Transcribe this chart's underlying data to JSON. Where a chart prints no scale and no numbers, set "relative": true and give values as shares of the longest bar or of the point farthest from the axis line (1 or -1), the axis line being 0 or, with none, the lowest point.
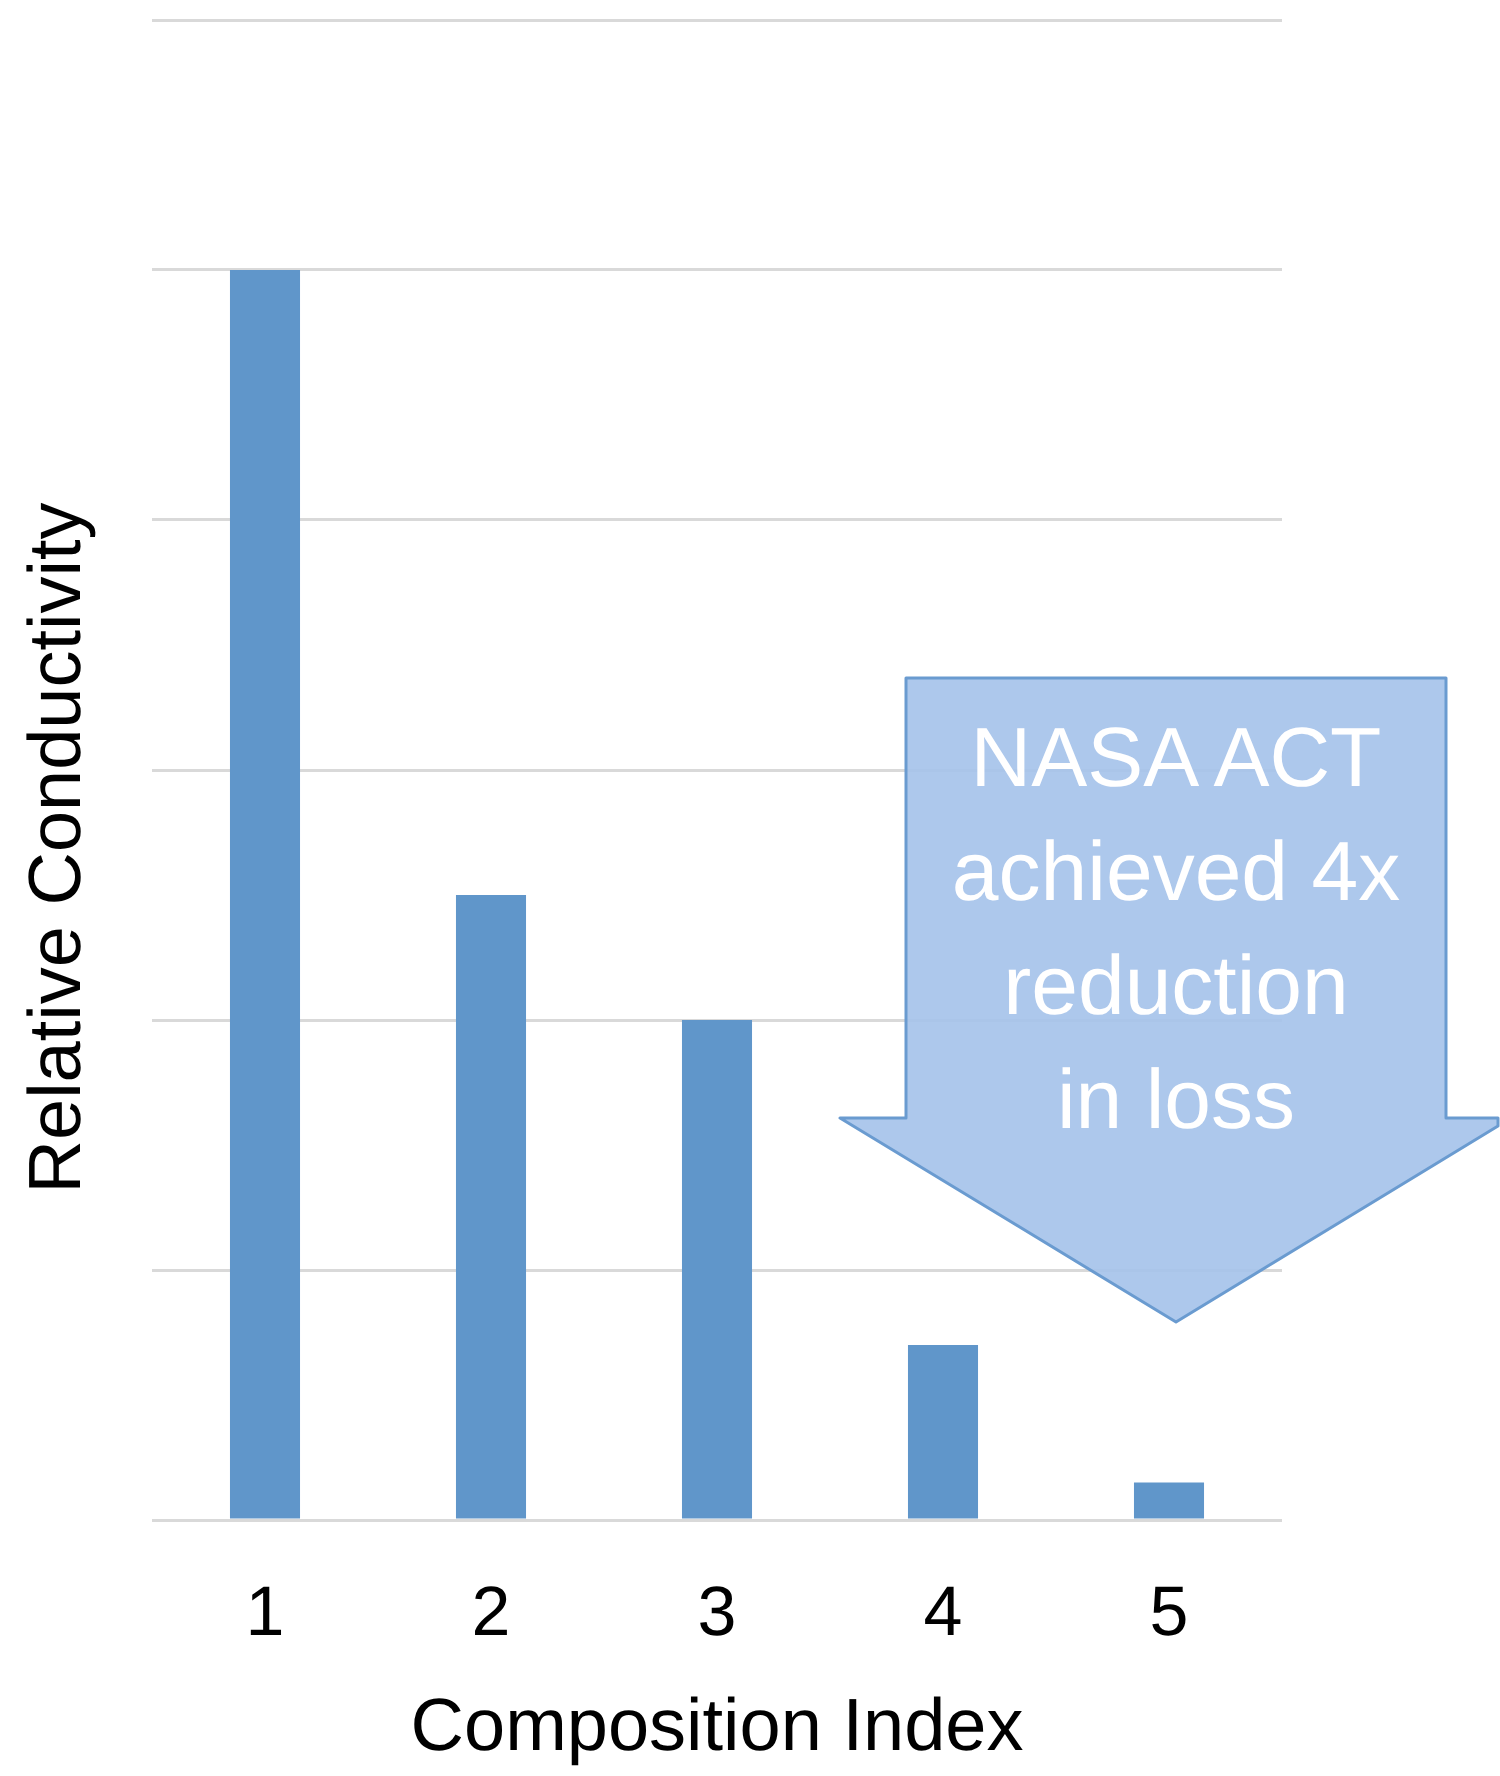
{
  "chart_data": {
    "type": "bar",
    "xlabel": "Composition Index",
    "ylabel": "Relative Conductivity",
    "categories": [
      "1",
      "2",
      "3",
      "4",
      "5"
    ],
    "values": [
      1,
      0.5,
      0.4,
      0.14,
      0.03
    ],
    "color": "#6096ca",
    "relative": true,
    "grid": "y",
    "annotations": [
      "NASA ACT\nachieved 4x\nreduction\nin loss"
    ]
  }
}
